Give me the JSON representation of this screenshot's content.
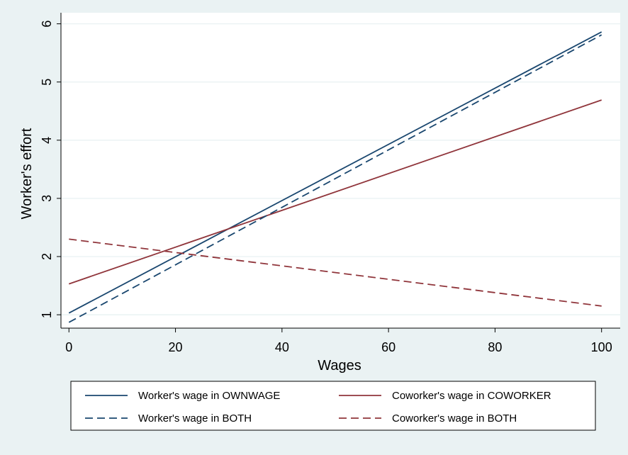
{
  "colors": {
    "background": "#eaf2f3",
    "plot_background": "#ffffff",
    "grid": "#eaf2f3",
    "navy": "#1a476f",
    "maroon": "#90353b"
  },
  "chart_data": {
    "type": "line",
    "title": "",
    "xlabel": "Wages",
    "ylabel": "Worker's effort",
    "xlim": [
      0,
      100
    ],
    "ylim": [
      1,
      6
    ],
    "xticks": [
      0,
      20,
      40,
      60,
      80,
      100
    ],
    "yticks": [
      1,
      2,
      3,
      4,
      5,
      6
    ],
    "grid": "horizontal",
    "legend_position": "bottom",
    "series": [
      {
        "name": "Worker's wage in OWNWAGE",
        "x": [
          0,
          100
        ],
        "y": [
          1.03,
          5.86
        ],
        "color": "#1a476f",
        "dash": "solid"
      },
      {
        "name": "Coworker's wage in COWORKER",
        "x": [
          0,
          100
        ],
        "y": [
          1.53,
          4.69
        ],
        "color": "#90353b",
        "dash": "solid"
      },
      {
        "name": "Worker's wage in BOTH",
        "x": [
          0,
          100
        ],
        "y": [
          0.87,
          5.81
        ],
        "color": "#1a476f",
        "dash": "dashed"
      },
      {
        "name": "Coworker's wage in BOTH",
        "x": [
          0,
          100
        ],
        "y": [
          2.3,
          1.15
        ],
        "color": "#90353b",
        "dash": "dashed"
      }
    ]
  }
}
